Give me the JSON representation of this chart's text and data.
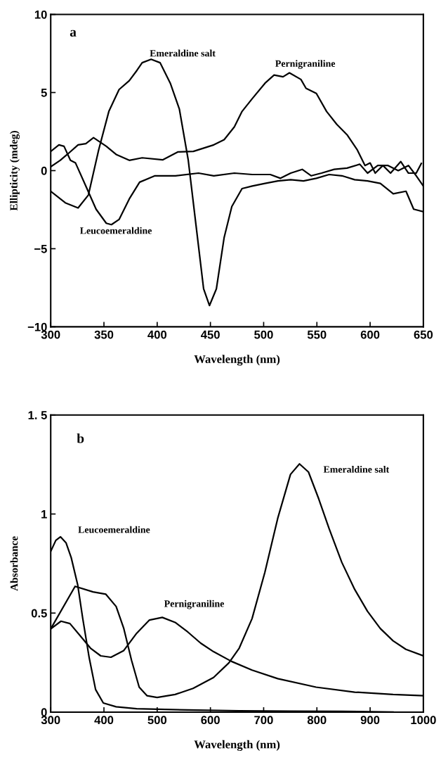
{
  "chart_data": [
    {
      "type": "line",
      "xlabel": "Wavelength (nm)",
      "ylabel": "Ellipticity (mdeg)",
      "xlim": [
        300,
        650
      ],
      "ylim": [
        -10,
        10
      ],
      "xticks": [
        300,
        350,
        400,
        450,
        500,
        550,
        600,
        650
      ],
      "yticks": [
        {
          "value": -10,
          "label": "−10"
        },
        {
          "value": -5,
          "label": "−5"
        },
        0,
        5,
        10
      ],
      "grid": false,
      "legend": false,
      "annotations": [
        "a",
        "Emeraldine salt",
        "Pernigraniline",
        "Leucoemeraldine"
      ],
      "series": [
        {
          "color": "#000000",
          "x": [
            300,
            313.7,
            325.7,
            335.4,
            345,
            354.6,
            364.2,
            373.8,
            381,
            385.9,
            394.3,
            402.7,
            412.3,
            420.8,
            429.2,
            436.4,
            443.6,
            449.1,
            455.6,
            462.9,
            470.1,
            479.7,
            489.3,
            501.3,
            513.4,
            525.4,
            537.4,
            549.5,
            561.5,
            573.5,
            585.5,
            597.6,
            609.6,
            621.7,
            633.7,
            640.9,
            650
          ],
          "values": [
            -1.32,
            -2.06,
            -2.39,
            -1.56,
            1.32,
            3.79,
            5.19,
            5.76,
            6.42,
            6.91,
            7.13,
            6.91,
            5.6,
            3.95,
            0.66,
            -3.46,
            -7.57,
            -8.64,
            -7.57,
            -4.28,
            -2.3,
            -1.15,
            -0.99,
            -0.82,
            -0.66,
            -0.58,
            -0.66,
            -0.49,
            -0.25,
            -0.33,
            -0.58,
            -0.66,
            -0.82,
            -1.48,
            -1.32,
            -2.47,
            -2.63
          ]
        },
        {
          "color": "#000000",
          "x": [
            300,
            307.7,
            312.5,
            318.5,
            323.3,
            333,
            342.6,
            352.2,
            357,
            364.2,
            373.8,
            383.5,
            397.9,
            417.2,
            438.8,
            453.2,
            472.5,
            489.3,
            506.2,
            515.8,
            525.4,
            536.2,
            544.7,
            554.3,
            566.3,
            578.3,
            590.3,
            597.6,
            607.2,
            616.8,
            626.4,
            636,
            643.3,
            650
          ],
          "values": [
            1.23,
            1.65,
            1.56,
            0.66,
            0.49,
            -0.99,
            -2.47,
            -3.37,
            -3.46,
            -3.13,
            -1.81,
            -0.74,
            -0.33,
            -0.33,
            -0.16,
            -0.33,
            -0.16,
            -0.25,
            -0.25,
            -0.49,
            -0.16,
            0.08,
            -0.33,
            -0.16,
            0.08,
            0.16,
            0.41,
            -0.16,
            0.33,
            0.33,
            0,
            0.33,
            -0.33,
            -0.99
          ]
        },
        {
          "color": "#000000",
          "x": [
            300,
            308.9,
            316.1,
            325.7,
            333,
            340.2,
            352.2,
            361.8,
            373.8,
            385.9,
            405.1,
            419.6,
            434,
            453.2,
            462.9,
            472.5,
            479.7,
            489.3,
            501.3,
            509.8,
            518.2,
            524.2,
            535,
            539.8,
            549.5,
            559.1,
            568.7,
            578.3,
            588,
            595.2,
            600,
            604.8,
            612,
            619.2,
            628.8,
            636,
            643.3,
            648.1
          ],
          "values": [
            0.25,
            0.66,
            1.07,
            1.65,
            1.73,
            2.11,
            1.56,
            1.02,
            0.66,
            0.82,
            0.69,
            1.2,
            1.23,
            1.65,
            1.98,
            2.8,
            3.79,
            4.61,
            5.6,
            6.12,
            6.01,
            6.26,
            5.84,
            5.27,
            4.94,
            3.79,
            2.96,
            2.3,
            1.32,
            0.33,
            0.49,
            -0.16,
            0.33,
            -0.16,
            0.58,
            -0.16,
            -0.16,
            0.46
          ]
        }
      ]
    },
    {
      "type": "line",
      "xlabel": "Wavelength (nm)",
      "ylabel": "Absorbance",
      "xlim": [
        300,
        1000
      ],
      "ylim": [
        0,
        1.5
      ],
      "xticks": [
        300,
        400,
        500,
        600,
        700,
        800,
        900,
        1000
      ],
      "yticks": [
        0,
        0.5,
        1,
        {
          "value": 1.5,
          "label": "1. 5"
        }
      ],
      "grid": false,
      "legend": false,
      "annotations": [
        "b",
        "Emeraldine salt",
        "Leucoemeraldine",
        "Pernigraniline"
      ],
      "series": [
        {
          "color": "#000000",
          "x": [
            300,
            345.8,
            379.5,
            403.6,
            422.9,
            437.3,
            451.8,
            466.2,
            480.7,
            499.9,
            533.7,
            567.4,
            605.9,
            634.8,
            654.1,
            678.2,
            702.3,
            726.4,
            750.4,
            767.3,
            784.2,
            803.4,
            822.7,
            846.8,
            870.9,
            895,
            919.1,
            943.1,
            967.2,
            1000
          ],
          "values": [
            0.42,
            0.635,
            0.607,
            0.595,
            0.533,
            0.422,
            0.262,
            0.126,
            0.083,
            0.074,
            0.089,
            0.12,
            0.175,
            0.249,
            0.323,
            0.472,
            0.706,
            0.978,
            1.2,
            1.253,
            1.212,
            1.077,
            0.928,
            0.756,
            0.62,
            0.509,
            0.422,
            0.36,
            0.317,
            0.284
          ]
        },
        {
          "color": "#000000",
          "x": [
            300,
            309.6,
            318.3,
            328.9,
            338.5,
            350.6,
            360.2,
            372.3,
            384.3,
            398.8,
            422.9,
            461.4,
            557.7,
            654.1,
            750.4,
            846.8,
            943.1
          ],
          "values": [
            0.811,
            0.867,
            0.885,
            0.854,
            0.78,
            0.644,
            0.472,
            0.274,
            0.114,
            0.046,
            0.027,
            0.017,
            0.011,
            0.007,
            0.005,
            0.004,
            0
          ]
        },
        {
          "color": "#000000",
          "x": [
            300,
            319.3,
            336.1,
            355.4,
            374.7,
            393.9,
            413.2,
            437.3,
            461.4,
            485.5,
            509.6,
            533.7,
            557.7,
            581.8,
            605.9,
            639.6,
            678.2,
            726.4,
            798.6,
            870.9,
            943.1,
            1000
          ],
          "values": [
            0.42,
            0.459,
            0.447,
            0.385,
            0.323,
            0.284,
            0.277,
            0.311,
            0.398,
            0.465,
            0.478,
            0.453,
            0.404,
            0.348,
            0.305,
            0.256,
            0.212,
            0.169,
            0.126,
            0.101,
            0.089,
            0.083
          ]
        }
      ]
    }
  ]
}
